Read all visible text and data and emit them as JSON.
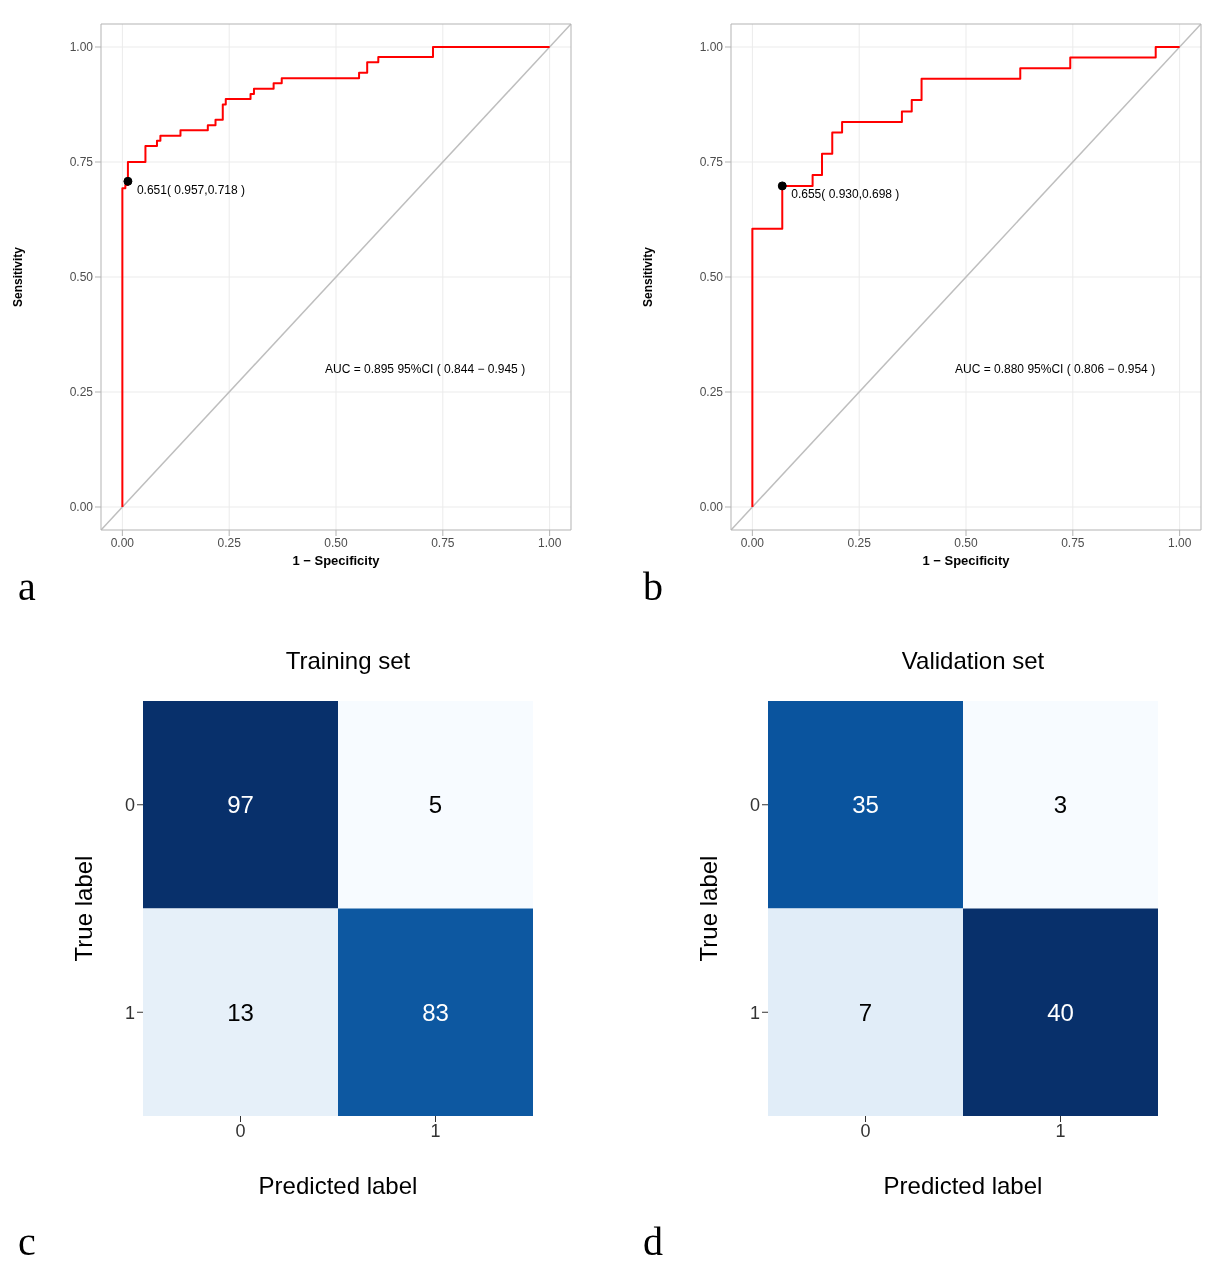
{
  "chart_data": [
    {
      "type": "line",
      "xlabel": "1 − Specificity",
      "ylabel": "Sensitivity",
      "xlim": [
        -0.05,
        1.05
      ],
      "ylim": [
        -0.05,
        1.05
      ],
      "xticks": [
        {
          "value": 0,
          "label": "0.00"
        },
        {
          "value": 0.25,
          "label": "0.25"
        },
        {
          "value": 0.5,
          "label": "0.50"
        },
        {
          "value": 0.75,
          "label": "0.75"
        },
        {
          "value": 1,
          "label": "1.00"
        }
      ],
      "yticks": [
        {
          "value": 0,
          "label": "0.00"
        },
        {
          "value": 0.25,
          "label": "0.25"
        },
        {
          "value": 0.5,
          "label": "0.50"
        },
        {
          "value": 0.75,
          "label": "0.75"
        },
        {
          "value": 1,
          "label": "1.00"
        }
      ],
      "grid": true,
      "series": [
        {
          "color": "#bebebe",
          "x": [
            -0.05,
            1.05
          ],
          "values": [
            -0.05,
            1.05
          ]
        },
        {
          "color": "#ff0000",
          "x": [
            0,
            0,
            0.007,
            0.007,
            0.013,
            0.013,
            0.054,
            0.054,
            0.081,
            0.081,
            0.089,
            0.089,
            0.136,
            0.136,
            0.2,
            0.2,
            0.218,
            0.218,
            0.235,
            0.235,
            0.242,
            0.242,
            0.3,
            0.3,
            0.308,
            0.308,
            0.354,
            0.354,
            0.373,
            0.373,
            0.554,
            0.554,
            0.573,
            0.573,
            0.599,
            0.599,
            0.727,
            0.727,
            1
          ],
          "values": [
            0,
            0.693,
            0.693,
            0.7,
            0.7,
            0.75,
            0.75,
            0.785,
            0.785,
            0.796,
            0.796,
            0.807,
            0.807,
            0.819,
            0.819,
            0.83,
            0.83,
            0.842,
            0.842,
            0.875,
            0.875,
            0.887,
            0.887,
            0.898,
            0.898,
            0.909,
            0.909,
            0.921,
            0.921,
            0.932,
            0.932,
            0.944,
            0.944,
            0.967,
            0.967,
            0.978,
            0.978,
            1,
            1
          ]
        }
      ],
      "annotations": [
        "AUC = 0.895 95%CI ( 0.844 − 0.945 )",
        "a",
        {
          "text": "0.651( 0.957,0.718 )",
          "x": 0.013,
          "y": 0.708
        }
      ]
    },
    {
      "type": "line",
      "xlabel": "1 − Specificity",
      "ylabel": "Sensitivity",
      "xlim": [
        -0.05,
        1.05
      ],
      "ylim": [
        -0.05,
        1.05
      ],
      "xticks": [
        {
          "value": 0,
          "label": "0.00"
        },
        {
          "value": 0.25,
          "label": "0.25"
        },
        {
          "value": 0.5,
          "label": "0.50"
        },
        {
          "value": 0.75,
          "label": "0.75"
        },
        {
          "value": 1,
          "label": "1.00"
        }
      ],
      "yticks": [
        {
          "value": 0,
          "label": "0.00"
        },
        {
          "value": 0.25,
          "label": "0.25"
        },
        {
          "value": 0.5,
          "label": "0.50"
        },
        {
          "value": 0.75,
          "label": "0.75"
        },
        {
          "value": 1,
          "label": "1.00"
        }
      ],
      "grid": true,
      "series": [
        {
          "color": "#bebebe",
          "x": [
            -0.05,
            1.05
          ],
          "values": [
            -0.05,
            1.05
          ]
        },
        {
          "color": "#ff0000",
          "x": [
            0,
            0,
            0.07,
            0.07,
            0.141,
            0.141,
            0.163,
            0.163,
            0.187,
            0.187,
            0.21,
            0.21,
            0.35,
            0.35,
            0.373,
            0.373,
            0.396,
            0.396,
            0.627,
            0.627,
            0.744,
            0.744,
            0.944,
            0.944,
            1
          ],
          "values": [
            0,
            0.605,
            0.605,
            0.698,
            0.698,
            0.722,
            0.722,
            0.768,
            0.768,
            0.814,
            0.814,
            0.837,
            0.837,
            0.86,
            0.86,
            0.885,
            0.885,
            0.931,
            0.931,
            0.954,
            0.954,
            0.977,
            0.977,
            1,
            1
          ]
        }
      ],
      "annotations": [
        "AUC = 0.880 95%CI ( 0.806 − 0.954 )",
        "b",
        {
          "text": "0.655( 0.930,0.698 )",
          "x": 0.07,
          "y": 0.698
        }
      ]
    },
    {
      "type": "heatmap",
      "title": "Training set",
      "xlabel": "Predicted label",
      "ylabel": "True label",
      "categories": [
        "0",
        "1"
      ],
      "y_categories": [
        "0",
        "1"
      ],
      "cells": [
        [
          97,
          5
        ],
        [
          13,
          83
        ]
      ],
      "data_labels": true,
      "annotations": [
        "c"
      ]
    },
    {
      "type": "heatmap",
      "title": "Validation set",
      "xlabel": "Predicted label",
      "ylabel": "True label",
      "categories": [
        "0",
        "1"
      ],
      "y_categories": [
        "0",
        "1"
      ],
      "cells": [
        [
          35,
          3
        ],
        [
          7,
          40
        ]
      ],
      "data_labels": true,
      "annotations": [
        "d"
      ]
    }
  ]
}
